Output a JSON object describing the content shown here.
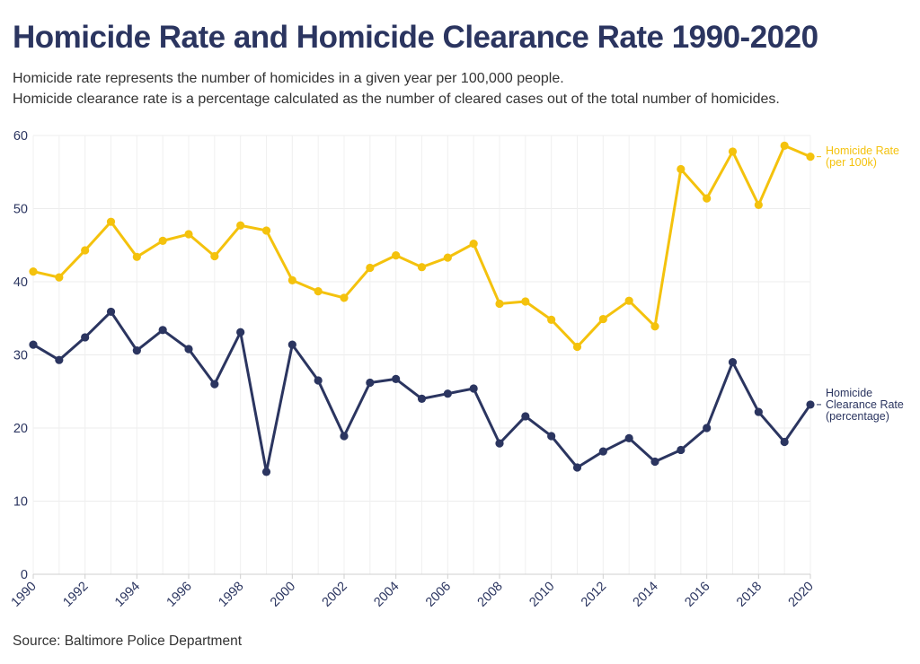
{
  "title": "Homicide Rate and Homicide Clearance Rate 1990-2020",
  "subtitle_lines": [
    "Homicide rate represents the number of homicides in a given year per 100,000 people.",
    "Homicide clearance rate is a percentage calculated as the number of cleared cases out of the total number of homicides."
  ],
  "source": "Source: Baltimore Police Department",
  "chart_data": {
    "type": "line",
    "x": [
      1990,
      1991,
      1992,
      1993,
      1994,
      1995,
      1996,
      1997,
      1998,
      1999,
      2000,
      2001,
      2002,
      2003,
      2004,
      2005,
      2006,
      2007,
      2008,
      2009,
      2010,
      2011,
      2012,
      2013,
      2014,
      2015,
      2016,
      2017,
      2018,
      2019,
      2020
    ],
    "xticks": [
      "1990",
      "1992",
      "1994",
      "1996",
      "1998",
      "2000",
      "2002",
      "2004",
      "2006",
      "2008",
      "2010",
      "2012",
      "2014",
      "2016",
      "2018",
      "2020"
    ],
    "ylim": [
      0,
      60
    ],
    "yticks": [
      "0",
      "10",
      "20",
      "30",
      "40",
      "50",
      "60"
    ],
    "grid": true,
    "legend": "direct labels at line ends (right)",
    "series": [
      {
        "name_lines": [
          "Homicide Rate",
          "(per 100k)"
        ],
        "color": "#f4c20d",
        "values": [
          41.4,
          40.6,
          44.3,
          48.2,
          43.4,
          45.6,
          46.5,
          43.5,
          47.7,
          47.0,
          40.2,
          38.7,
          37.8,
          41.9,
          43.6,
          42.0,
          43.3,
          45.2,
          37.0,
          37.3,
          34.8,
          31.1,
          34.9,
          37.4,
          33.9,
          55.4,
          51.4,
          57.8,
          50.5,
          58.6,
          57.1
        ]
      },
      {
        "name_lines": [
          "Homicide",
          "Clearance Rate",
          "(percentage)"
        ],
        "color": "#2b3560",
        "values": [
          31.4,
          29.3,
          32.4,
          35.9,
          30.6,
          33.4,
          30.8,
          26.0,
          33.1,
          14.0,
          31.4,
          26.5,
          18.9,
          26.2,
          26.7,
          24.0,
          24.7,
          25.4,
          17.9,
          21.6,
          18.9,
          14.6,
          16.8,
          18.6,
          15.4,
          17.0,
          20.0,
          29.0,
          22.2,
          18.1,
          23.2
        ]
      }
    ]
  }
}
